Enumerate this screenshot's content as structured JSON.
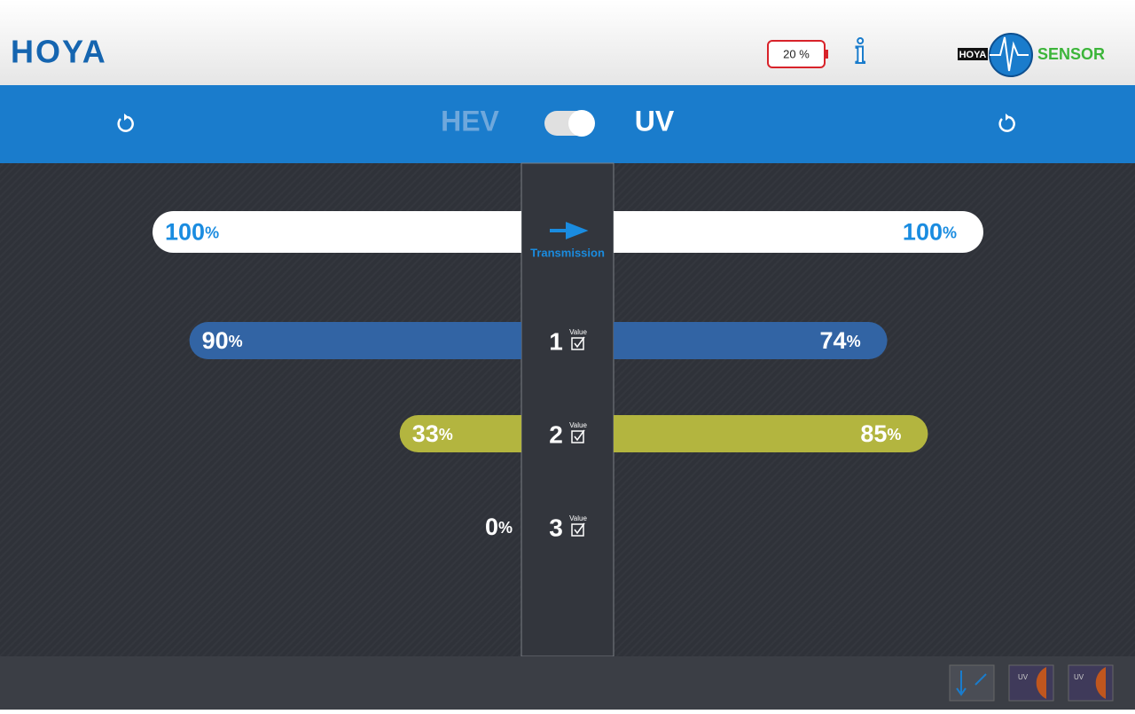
{
  "header": {
    "logo": "HOYA",
    "battery": "20 %",
    "info": "i",
    "sensor_brand": "HOYA",
    "sensor_label": "SENSOR"
  },
  "toggle": {
    "left": "HEV",
    "right": "UV"
  },
  "unit": "%",
  "reference": {
    "label": "Transmission",
    "hev": 100,
    "uv": 100
  },
  "rows": [
    {
      "number": "1",
      "tag": "Value",
      "hev": 90,
      "uv": 74,
      "color": "#3264a4"
    },
    {
      "number": "2",
      "tag": "Value",
      "hev": 33,
      "uv": 85,
      "color": "#b3b53f"
    },
    {
      "number": "3",
      "tag": "Value",
      "hev": 0,
      "uv": null,
      "color": "#b3b53f"
    }
  ],
  "footer": {
    "icon_uv_1": "UV",
    "icon_uv_2": "UV"
  }
}
